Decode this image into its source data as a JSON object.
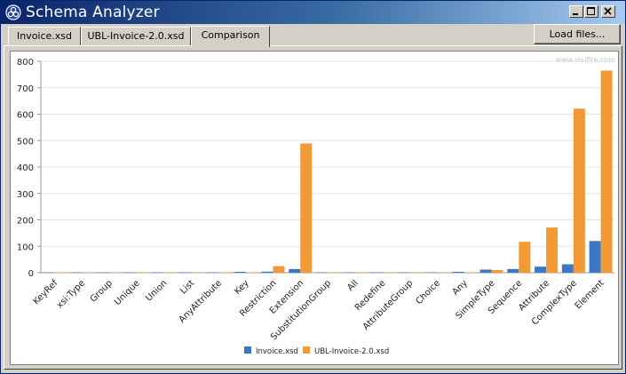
{
  "window": {
    "title": "Schema Analyzer",
    "icon": "app-logo-icon"
  },
  "tabs": [
    {
      "label": "Invoice.xsd",
      "active": false
    },
    {
      "label": "UBL-Invoice-2.0.xsd",
      "active": false
    },
    {
      "label": "Comparison",
      "active": true
    }
  ],
  "toolbar": {
    "load_label": "Load files..."
  },
  "chart": {
    "watermark": "www.visifire.com"
  },
  "colors": {
    "invoice": "#3b78c4",
    "ubl": "#f29a36",
    "titlebar": "#0a246a"
  },
  "chart_data": {
    "type": "bar",
    "categories": [
      "KeyRef",
      "xsi:Type",
      "Group",
      "Unique",
      "Union",
      "List",
      "AnyAttribute",
      "Key",
      "Restriction",
      "Extension",
      "SubstitutionGroup",
      "All",
      "Redefine",
      "AttributeGroup",
      "Choice",
      "Any",
      "SimpleType",
      "Sequence",
      "Attribute",
      "ComplexType",
      "Element"
    ],
    "series": [
      {
        "name": "Invoice.xsd",
        "values": [
          0,
          0,
          0,
          0,
          0,
          0,
          0,
          1,
          4,
          14,
          0,
          0,
          0,
          0,
          0,
          1,
          12,
          14,
          23,
          32,
          120
        ]
      },
      {
        "name": "UBL-Invoice-2.0.xsd",
        "values": [
          0,
          0,
          0,
          0,
          0,
          0,
          0,
          0,
          25,
          489,
          0,
          0,
          0,
          0,
          0,
          0,
          10,
          117,
          171,
          621,
          765
        ]
      }
    ],
    "ylim": [
      0,
      800
    ],
    "yticks": [
      0,
      100,
      200,
      300,
      400,
      500,
      600,
      700,
      800
    ],
    "grid": true,
    "legend": "bottom-center"
  }
}
